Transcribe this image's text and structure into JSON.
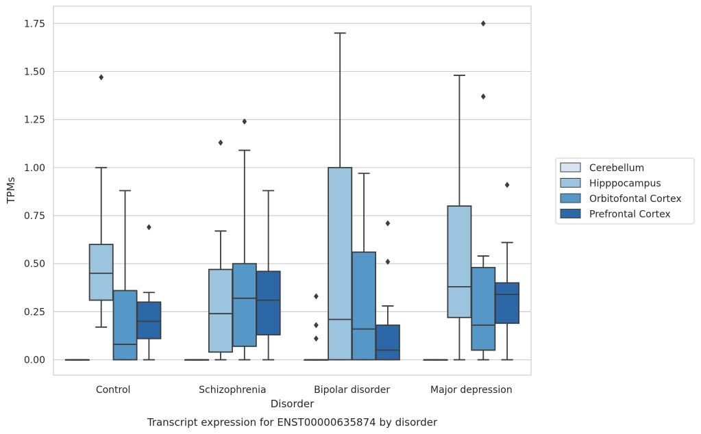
{
  "chart_data": {
    "type": "box",
    "caption": "Transcript expression for ENST00000635874 by disorder",
    "xlabel": "Disorder",
    "ylabel": "TPMs",
    "ylim": [
      -0.08,
      1.84
    ],
    "yticks": [
      "0.00",
      "0.25",
      "0.50",
      "0.75",
      "1.00",
      "1.25",
      "1.50",
      "1.75"
    ],
    "categories": [
      "Control",
      "Schizophrenia",
      "Bipolar disorder",
      "Major depression"
    ],
    "grid": true,
    "legend_position": "right",
    "series": [
      {
        "name": "Cerebellum",
        "color": "#d7e5f2",
        "boxes": [
          {
            "whislo": 0,
            "q1": 0,
            "med": 0,
            "q3": 0,
            "whishi": 0,
            "fliers": []
          },
          {
            "whislo": 0,
            "q1": 0,
            "med": 0,
            "q3": 0,
            "whishi": 0,
            "fliers": []
          },
          {
            "whislo": 0,
            "q1": 0,
            "med": 0,
            "q3": 0,
            "whishi": 0,
            "fliers": []
          },
          {
            "whislo": 0,
            "q1": 0,
            "med": 0,
            "q3": 0,
            "whishi": 0,
            "fliers": []
          }
        ]
      },
      {
        "name": "Hipppocampus",
        "color": "#9bc4de",
        "boxes": [
          {
            "whislo": 0.17,
            "q1": 0.31,
            "med": 0.45,
            "q3": 0.6,
            "whishi": 1.0,
            "fliers": [
              1.47
            ]
          },
          {
            "whislo": 0,
            "q1": 0.04,
            "med": 0.24,
            "q3": 0.47,
            "whishi": 0.67,
            "fliers": [
              1.13
            ]
          },
          {
            "whislo": 0,
            "q1": 0,
            "med": 0.21,
            "q3": 1.0,
            "whishi": 1.7,
            "fliers": []
          },
          {
            "whislo": 0,
            "q1": 0.22,
            "med": 0.38,
            "q3": 0.8,
            "whishi": 1.48,
            "fliers": []
          }
        ]
      },
      {
        "name": "Orbitofontal Cortex",
        "color": "#5597c6",
        "boxes": [
          {
            "whislo": 0,
            "q1": 0,
            "med": 0.08,
            "q3": 0.36,
            "whishi": 0.88,
            "fliers": []
          },
          {
            "whislo": 0,
            "q1": 0.07,
            "med": 0.32,
            "q3": 0.5,
            "whishi": 1.09,
            "fliers": [
              1.24
            ]
          },
          {
            "whislo": 0,
            "q1": 0,
            "med": 0.16,
            "q3": 0.56,
            "whishi": 0.97,
            "fliers": []
          },
          {
            "whislo": 0,
            "q1": 0.05,
            "med": 0.18,
            "q3": 0.48,
            "whishi": 0.54,
            "fliers": [
              1.75,
              1.37
            ]
          }
        ]
      },
      {
        "name": "Prefrontal Cortex",
        "color": "#2c68a8",
        "boxes": [
          {
            "whislo": 0,
            "q1": 0.11,
            "med": 0.2,
            "q3": 0.3,
            "whishi": 0.35,
            "fliers": [
              0.69
            ]
          },
          {
            "whislo": 0,
            "q1": 0.13,
            "med": 0.31,
            "q3": 0.46,
            "whishi": 0.88,
            "fliers": []
          },
          {
            "whislo": 0,
            "q1": 0,
            "med": 0.05,
            "q3": 0.18,
            "whishi": 0.28,
            "fliers": [
              0.71,
              0.51
            ]
          },
          {
            "whislo": 0,
            "q1": 0.19,
            "med": 0.34,
            "q3": 0.4,
            "whishi": 0.61,
            "fliers": [
              0.91
            ]
          }
        ]
      }
    ],
    "extra_fliers": [
      {
        "category": "Bipolar disorder",
        "series": "Cerebellum",
        "values": [
          0.33,
          0.18,
          0.11
        ]
      }
    ]
  }
}
